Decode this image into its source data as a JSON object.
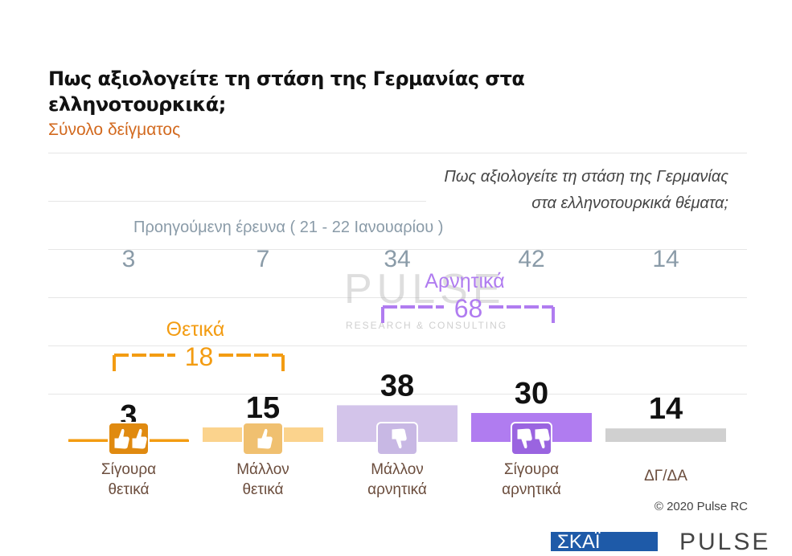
{
  "title": "Πως αξιολογείτε τη στάση της Γερμανίας στα ελληνοτουρκικά;",
  "subtitle": "Σύνολο δείγματος",
  "question_line1": "Πως αξιολογείτε τη στάση της Γερμανίας",
  "question_line2": "στα ελληνοτουρκικά θέματα;",
  "previous_label": "Προηγούμενη έρευνα   ( 21 - 22  Ιανουαρίου )",
  "previous_values": [
    "3",
    "7",
    "34",
    "42",
    "14"
  ],
  "groups": {
    "positive": {
      "label": "Θετικά",
      "value": "18",
      "color": "#f39c12"
    },
    "negative": {
      "label": "Αρνητικά",
      "value": "68",
      "color": "#b07cf0"
    }
  },
  "categories": [
    {
      "line1": "Σίγουρα",
      "line2": "θετικά",
      "icon": "double-thumbs-up-icon"
    },
    {
      "line1": "Μάλλον",
      "line2": "θετικά",
      "icon": "thumb-up-icon"
    },
    {
      "line1": "Μάλλον",
      "line2": "αρνητικά",
      "icon": "thumb-down-icon"
    },
    {
      "line1": "Σίγουρα",
      "line2": "αρνητικά",
      "icon": "double-thumbs-down-icon"
    },
    {
      "line1": "ΔΓ/ΔΑ",
      "line2": "",
      "icon": ""
    }
  ],
  "copyright": "© 2020 Pulse RC",
  "watermark": {
    "title": "PULSE",
    "sub": "RESEARCH & CONSULTING"
  },
  "footer": {
    "left": "ΣΚΑΪ",
    "right": "PULSE"
  },
  "chart_data": {
    "type": "bar",
    "categories": [
      "Σίγουρα θετικά",
      "Μάλλον θετικά",
      "Μάλλον αρνητικά",
      "Σίγουρα αρνητικά",
      "ΔΓ/ΔΑ"
    ],
    "values": [
      3,
      15,
      38,
      30,
      14
    ],
    "previous_values": [
      3,
      7,
      34,
      42,
      14
    ],
    "colors": [
      "#f39c12",
      "#fbd38d",
      "#d3c4ea",
      "#b07cf0",
      "#d0d0d0"
    ],
    "ylim": [
      0,
      100
    ],
    "grid": true
  }
}
